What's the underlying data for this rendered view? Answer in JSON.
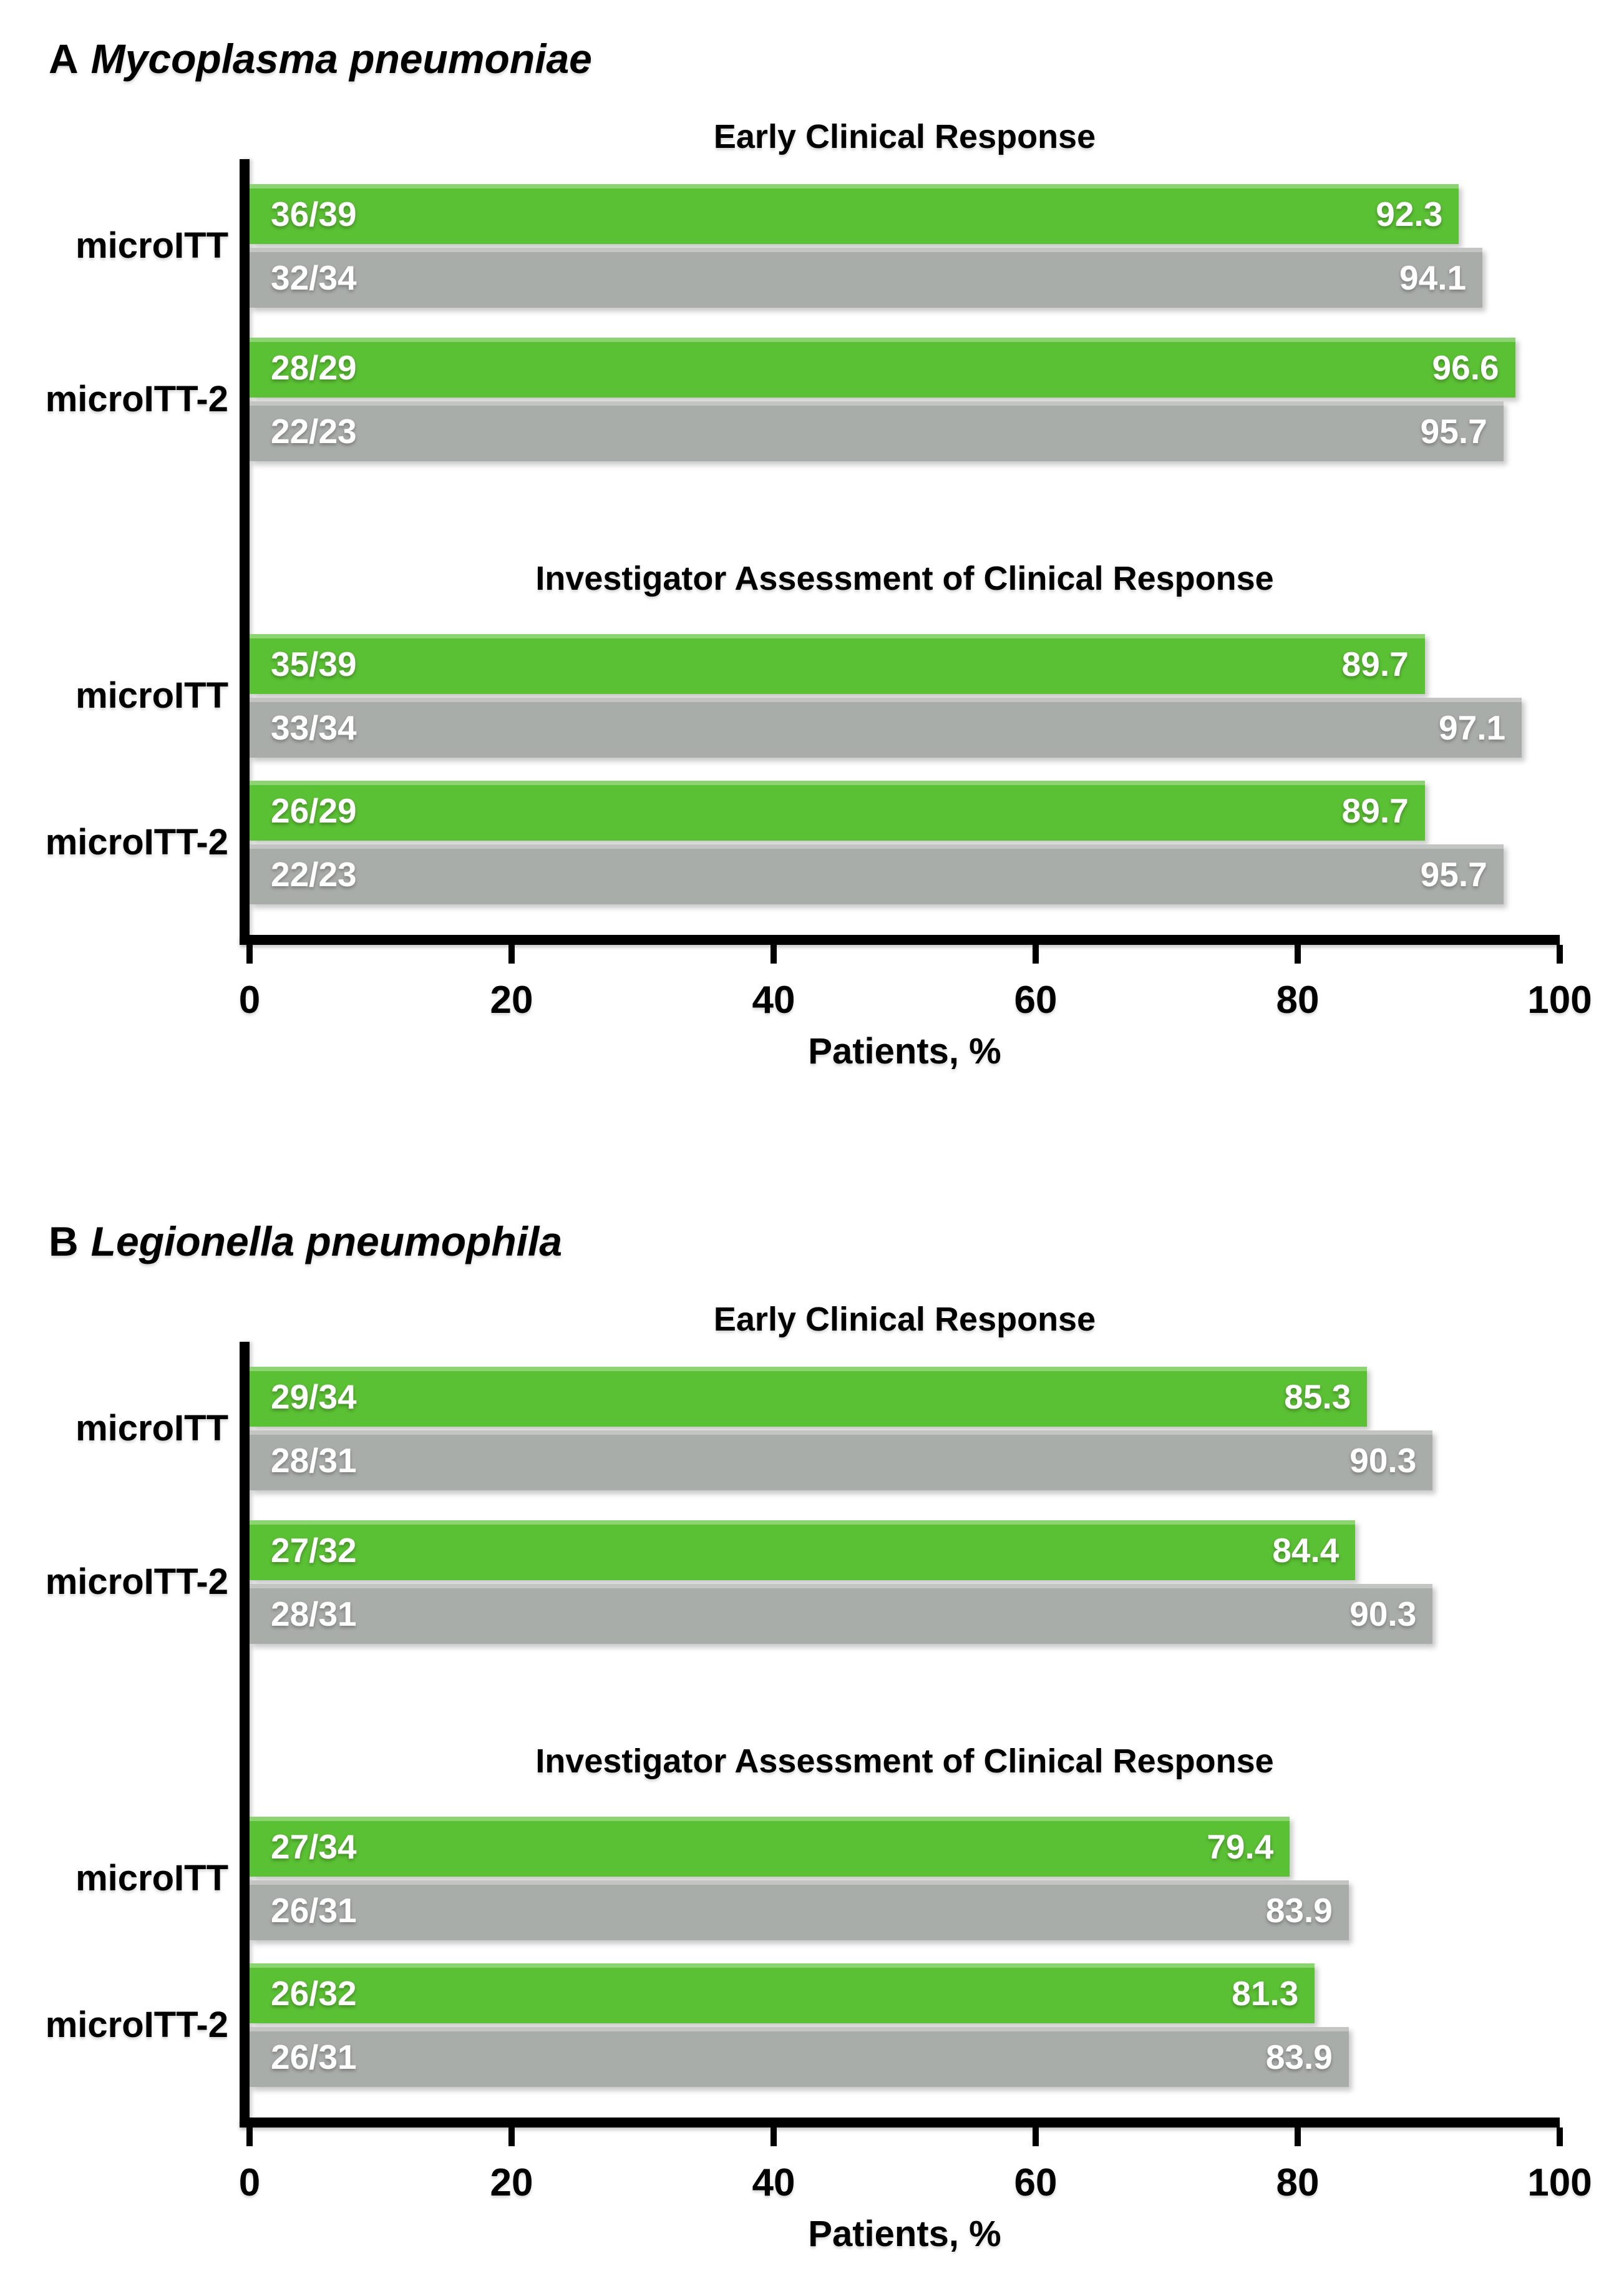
{
  "page": {
    "background": "#ffffff"
  },
  "colors": {
    "green_bar": "#5BC134",
    "gray_bar": "#A9ADAA",
    "axis_black": "#000000",
    "bar_text_white": "#FFFFFF"
  },
  "chart_data": [
    {
      "type": "bar",
      "orientation": "horizontal",
      "panel_letter": "A",
      "panel_title": "Mycoplasma pneumoniae",
      "xlabel": "Patients, %",
      "xlim": [
        0,
        100
      ],
      "xticks": [
        0,
        20,
        40,
        60,
        80,
        100
      ],
      "grid": false,
      "legend": null,
      "sections": [
        {
          "title": "Early Clinical Response",
          "groups": [
            {
              "label": "microITT",
              "bars": [
                {
                  "series": "green",
                  "count": "36/39",
                  "value": 92.3
                },
                {
                  "series": "gray",
                  "count": "32/34",
                  "value": 94.1
                }
              ]
            },
            {
              "label": "microITT-2",
              "bars": [
                {
                  "series": "green",
                  "count": "28/29",
                  "value": 96.6
                },
                {
                  "series": "gray",
                  "count": "22/23",
                  "value": 95.7
                }
              ]
            }
          ]
        },
        {
          "title": "Investigator Assessment of Clinical Response",
          "groups": [
            {
              "label": "microITT",
              "bars": [
                {
                  "series": "green",
                  "count": "35/39",
                  "value": 89.7
                },
                {
                  "series": "gray",
                  "count": "33/34",
                  "value": 97.1
                }
              ]
            },
            {
              "label": "microITT-2",
              "bars": [
                {
                  "series": "green",
                  "count": "26/29",
                  "value": 89.7
                },
                {
                  "series": "gray",
                  "count": "22/23",
                  "value": 95.7
                }
              ]
            }
          ]
        }
      ]
    },
    {
      "type": "bar",
      "orientation": "horizontal",
      "panel_letter": "B",
      "panel_title": "Legionella pneumophila",
      "xlabel": "Patients, %",
      "xlim": [
        0,
        100
      ],
      "xticks": [
        0,
        20,
        40,
        60,
        80,
        100
      ],
      "grid": false,
      "legend": null,
      "sections": [
        {
          "title": "Early Clinical Response",
          "groups": [
            {
              "label": "microITT",
              "bars": [
                {
                  "series": "green",
                  "count": "29/34",
                  "value": 85.3
                },
                {
                  "series": "gray",
                  "count": "28/31",
                  "value": 90.3
                }
              ]
            },
            {
              "label": "microITT-2",
              "bars": [
                {
                  "series": "green",
                  "count": "27/32",
                  "value": 84.4
                },
                {
                  "series": "gray",
                  "count": "28/31",
                  "value": 90.3
                }
              ]
            }
          ]
        },
        {
          "title": "Investigator Assessment of Clinical Response",
          "groups": [
            {
              "label": "microITT",
              "bars": [
                {
                  "series": "green",
                  "count": "27/34",
                  "value": 79.4
                },
                {
                  "series": "gray",
                  "count": "26/31",
                  "value": 83.9
                }
              ]
            },
            {
              "label": "microITT-2",
              "bars": [
                {
                  "series": "green",
                  "count": "26/32",
                  "value": 81.3
                },
                {
                  "series": "gray",
                  "count": "26/31",
                  "value": 83.9
                }
              ]
            }
          ]
        }
      ]
    }
  ]
}
